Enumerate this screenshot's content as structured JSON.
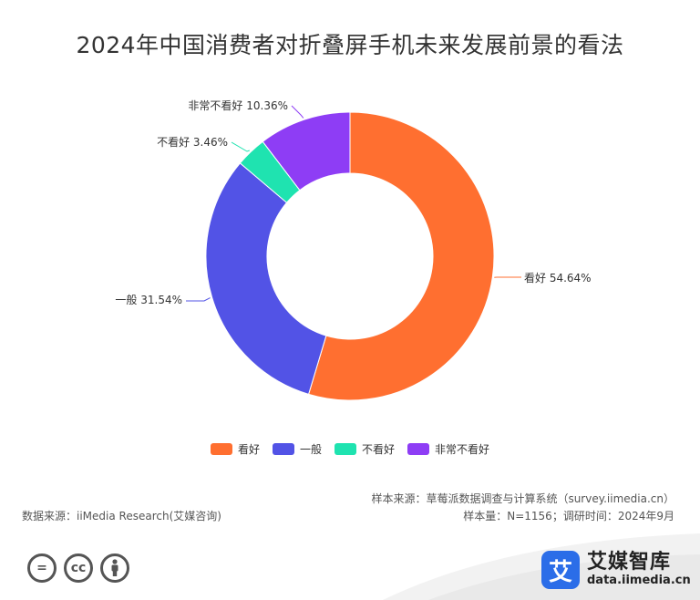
{
  "chart_data": {
    "type": "pie",
    "variant": "donut",
    "title": "2024年中国消费者对折叠屏手机未来发展前景的看法",
    "slices": [
      {
        "name": "看好",
        "value": 54.64,
        "label": "看好 54.64%",
        "color": "#ff6f30"
      },
      {
        "name": "一般",
        "value": 31.54,
        "label": "一般 31.54%",
        "color": "#5253e6"
      },
      {
        "name": "不看好",
        "value": 3.46,
        "label": "不看好 3.46%",
        "color": "#1fe3b0"
      },
      {
        "name": "非常不看好",
        "value": 10.36,
        "label": "非常不看好 10.36%",
        "color": "#8e3df5"
      }
    ],
    "legend_position": "bottom"
  },
  "footer": {
    "sample_source": "样本来源：草莓派数据调查与计算系统（survey.iimedia.cn）",
    "sample_info": "样本量：N=1156；调研时间：2024年9月",
    "data_source": "数据来源：iiMedia Research(艾媒咨询)"
  },
  "brand": {
    "logo_char": "艾",
    "name": "艾媒智库",
    "url": "data.iimedia.cn"
  },
  "license_icons": {
    "equals": "=",
    "cc": "cc"
  }
}
